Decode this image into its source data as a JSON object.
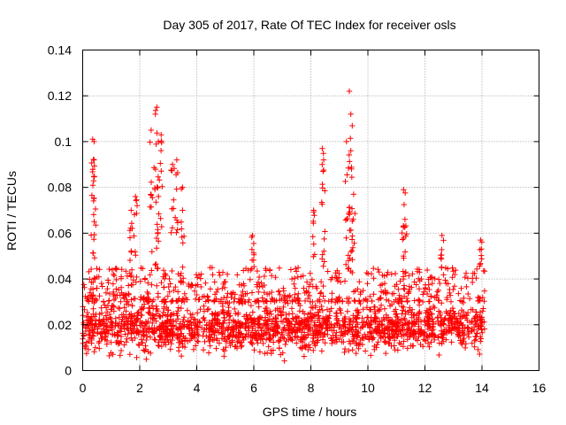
{
  "chart_data": {
    "type": "scatter",
    "title": "Day 305 of 2017, Rate Of TEC Index for receiver osls",
    "xlabel": "GPS time / hours",
    "ylabel": "ROTI / TECUs",
    "xlim": [
      0,
      16
    ],
    "ylim": [
      0,
      0.14
    ],
    "x_ticks": [
      0,
      2,
      4,
      6,
      8,
      10,
      12,
      14,
      16
    ],
    "y_ticks": [
      0,
      0.02,
      0.04,
      0.06,
      0.08,
      0.1,
      0.12,
      0.14
    ],
    "x_tick_labels": [
      "0",
      "2",
      "4",
      "6",
      "8",
      "10",
      "12",
      "14",
      "16"
    ],
    "y_tick_labels": [
      "0",
      "0.02",
      "0.04",
      "0.06",
      "0.08",
      "0.1",
      "0.12",
      "0.14"
    ],
    "grid": true,
    "marker": "+",
    "series": [
      {
        "name": "ROTI",
        "color": "#ff0000",
        "x_range": [
          0,
          14.1
        ],
        "dense_band": [
          0.008,
          0.03
        ],
        "typical_max": 0.045,
        "peaks": [
          {
            "x": 0.4,
            "y": 0.1
          },
          {
            "x": 0.4,
            "y": 0.092
          },
          {
            "x": 0.35,
            "y": 0.101
          },
          {
            "x": 1.7,
            "y": 0.07
          },
          {
            "x": 1.85,
            "y": 0.076
          },
          {
            "x": 2.4,
            "y": 0.105
          },
          {
            "x": 2.55,
            "y": 0.112
          },
          {
            "x": 2.6,
            "y": 0.115
          },
          {
            "x": 2.65,
            "y": 0.1
          },
          {
            "x": 2.75,
            "y": 0.103
          },
          {
            "x": 3.15,
            "y": 0.09
          },
          {
            "x": 3.3,
            "y": 0.092
          },
          {
            "x": 3.5,
            "y": 0.08
          },
          {
            "x": 5.95,
            "y": 0.059
          },
          {
            "x": 8.1,
            "y": 0.07
          },
          {
            "x": 8.4,
            "y": 0.097
          },
          {
            "x": 8.45,
            "y": 0.092
          },
          {
            "x": 9.25,
            "y": 0.1
          },
          {
            "x": 9.35,
            "y": 0.122
          },
          {
            "x": 9.4,
            "y": 0.112
          },
          {
            "x": 9.4,
            "y": 0.096
          },
          {
            "x": 9.5,
            "y": 0.077
          },
          {
            "x": 11.25,
            "y": 0.079
          },
          {
            "x": 11.3,
            "y": 0.066
          },
          {
            "x": 12.6,
            "y": 0.059
          },
          {
            "x": 13.95,
            "y": 0.057
          }
        ]
      }
    ]
  }
}
